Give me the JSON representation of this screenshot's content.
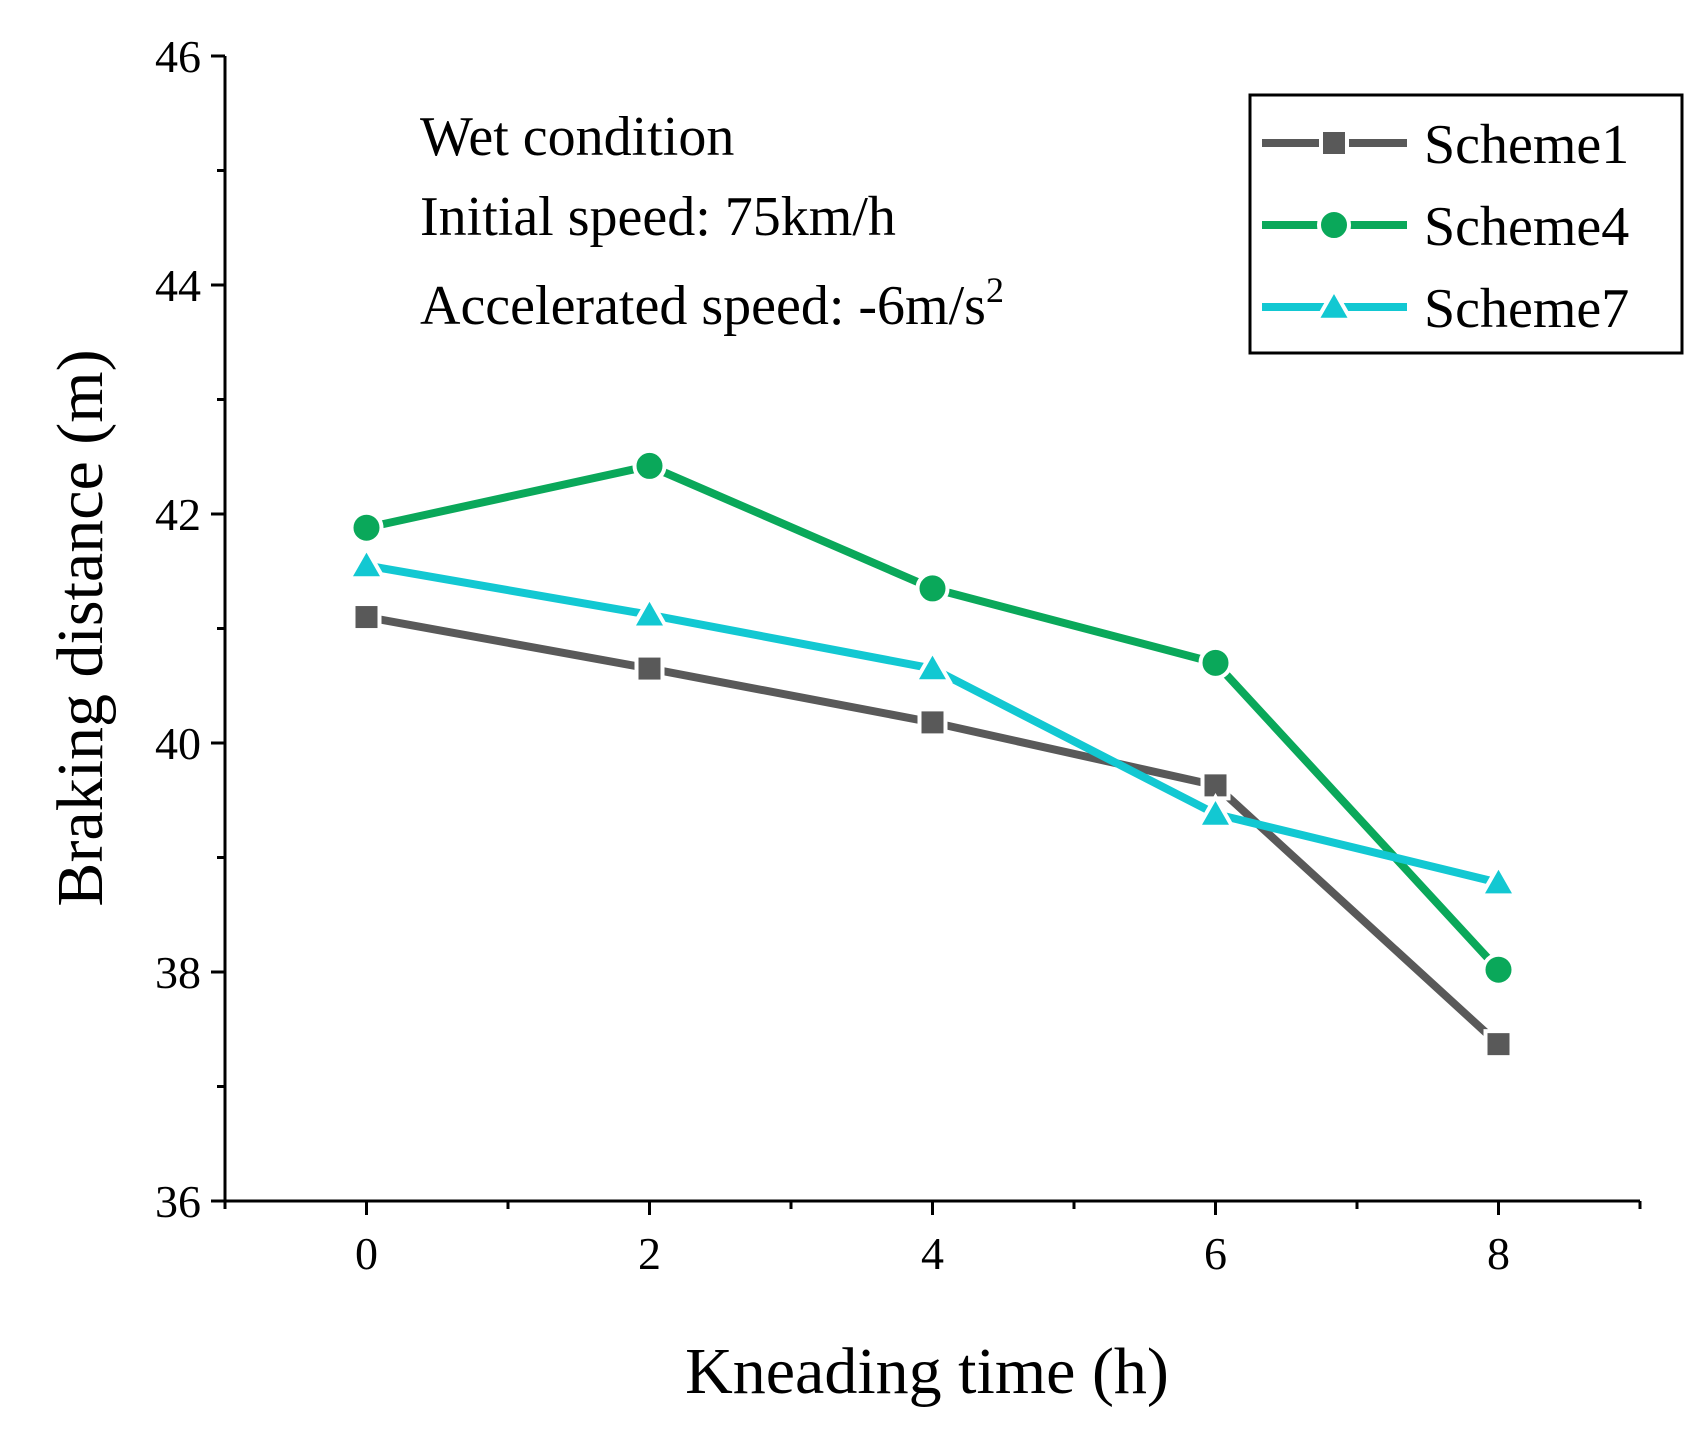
{
  "chart_data": {
    "type": "line",
    "xlabel": "Kneading time (h)",
    "ylabel": "Braking distance (m)",
    "xlim": [
      -1,
      9
    ],
    "ylim": [
      36,
      46
    ],
    "xticks": [
      0,
      2,
      4,
      6,
      8
    ],
    "yticks": [
      36,
      38,
      40,
      42,
      44,
      46
    ],
    "x": [
      0,
      2,
      4,
      6,
      8
    ],
    "series": [
      {
        "name": "Scheme1",
        "color": "#595959",
        "marker": "square",
        "values": [
          41.1,
          40.65,
          40.18,
          39.63,
          37.37
        ]
      },
      {
        "name": "Scheme4",
        "color": "#0aa85a",
        "marker": "circle",
        "values": [
          41.88,
          42.42,
          41.35,
          40.7,
          38.02
        ]
      },
      {
        "name": "Scheme7",
        "color": "#12c8d2",
        "marker": "triangle",
        "values": [
          41.55,
          41.12,
          40.65,
          39.38,
          38.78
        ]
      }
    ],
    "annotations": [
      {
        "text": "Wet condition"
      },
      {
        "text": "Initial speed: 75km/h"
      },
      {
        "text": "Accelerated speed: -6m/s",
        "sup": "2"
      }
    ],
    "legend_position": "top-right",
    "grid": false
  }
}
